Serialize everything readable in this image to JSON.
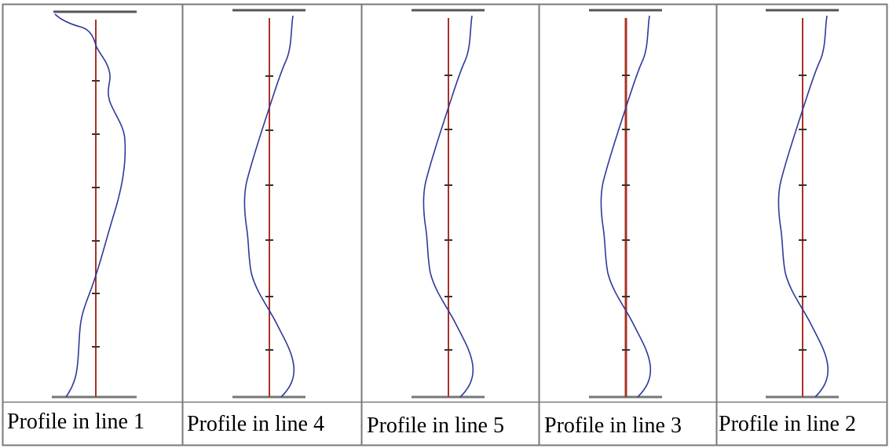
{
  "panels": [
    {
      "caption": "Profile in line 1"
    },
    {
      "caption": "Profile in line 4"
    },
    {
      "caption": "Profile in line 5"
    },
    {
      "caption": "Profile in line 3"
    },
    {
      "caption": "Profile in line 2"
    }
  ],
  "colors": {
    "reference_line": "#a83226",
    "profile_curve": "#2e3a9a",
    "bars": "#555555",
    "frame": "#7a7a7a",
    "ticks": "#333333"
  }
}
